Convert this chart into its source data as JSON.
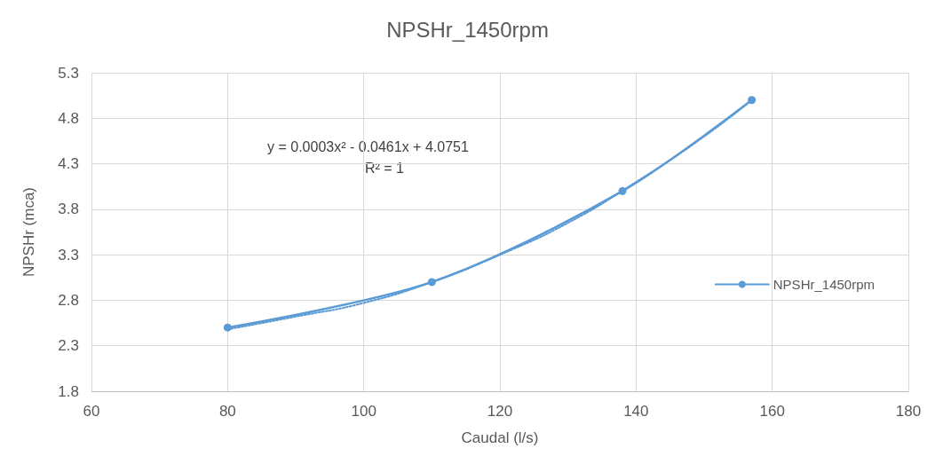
{
  "chart_data": {
    "type": "line",
    "title": "NPSHr_1450rpm",
    "xlabel": "Caudal (l/s)",
    "ylabel": "NPSHr (mca)",
    "x": [
      80,
      110,
      138,
      157
    ],
    "series": [
      {
        "name": "NPSHr_1450rpm",
        "color": "#5b9bd5",
        "values": [
          2.5,
          3.0,
          4.0,
          5.0
        ],
        "marker": "circle",
        "line_style": "solid"
      },
      {
        "type": "line",
        "color": "#5b9bd5",
        "x": [
          80,
          90,
          100,
          110,
          120,
          130,
          140,
          150,
          157
        ],
        "values": [
          2.48,
          2.62,
          2.77,
          3.0,
          3.3,
          3.65,
          4.1,
          4.6,
          5.0
        ],
        "marker": "none",
        "line_style": "dotted"
      }
    ],
    "annotations": [
      "y = 0.0003x² - 0.0461x + 4.0751",
      "R² = 1"
    ],
    "xlim": [
      60,
      180
    ],
    "xticks": [
      60,
      80,
      100,
      120,
      140,
      160,
      180
    ],
    "ylim": [
      1.8,
      5.3
    ],
    "yticks": [
      1.8,
      2.3,
      2.8,
      3.3,
      3.8,
      4.3,
      4.8,
      5.3
    ],
    "grid": true,
    "legend": "right"
  }
}
